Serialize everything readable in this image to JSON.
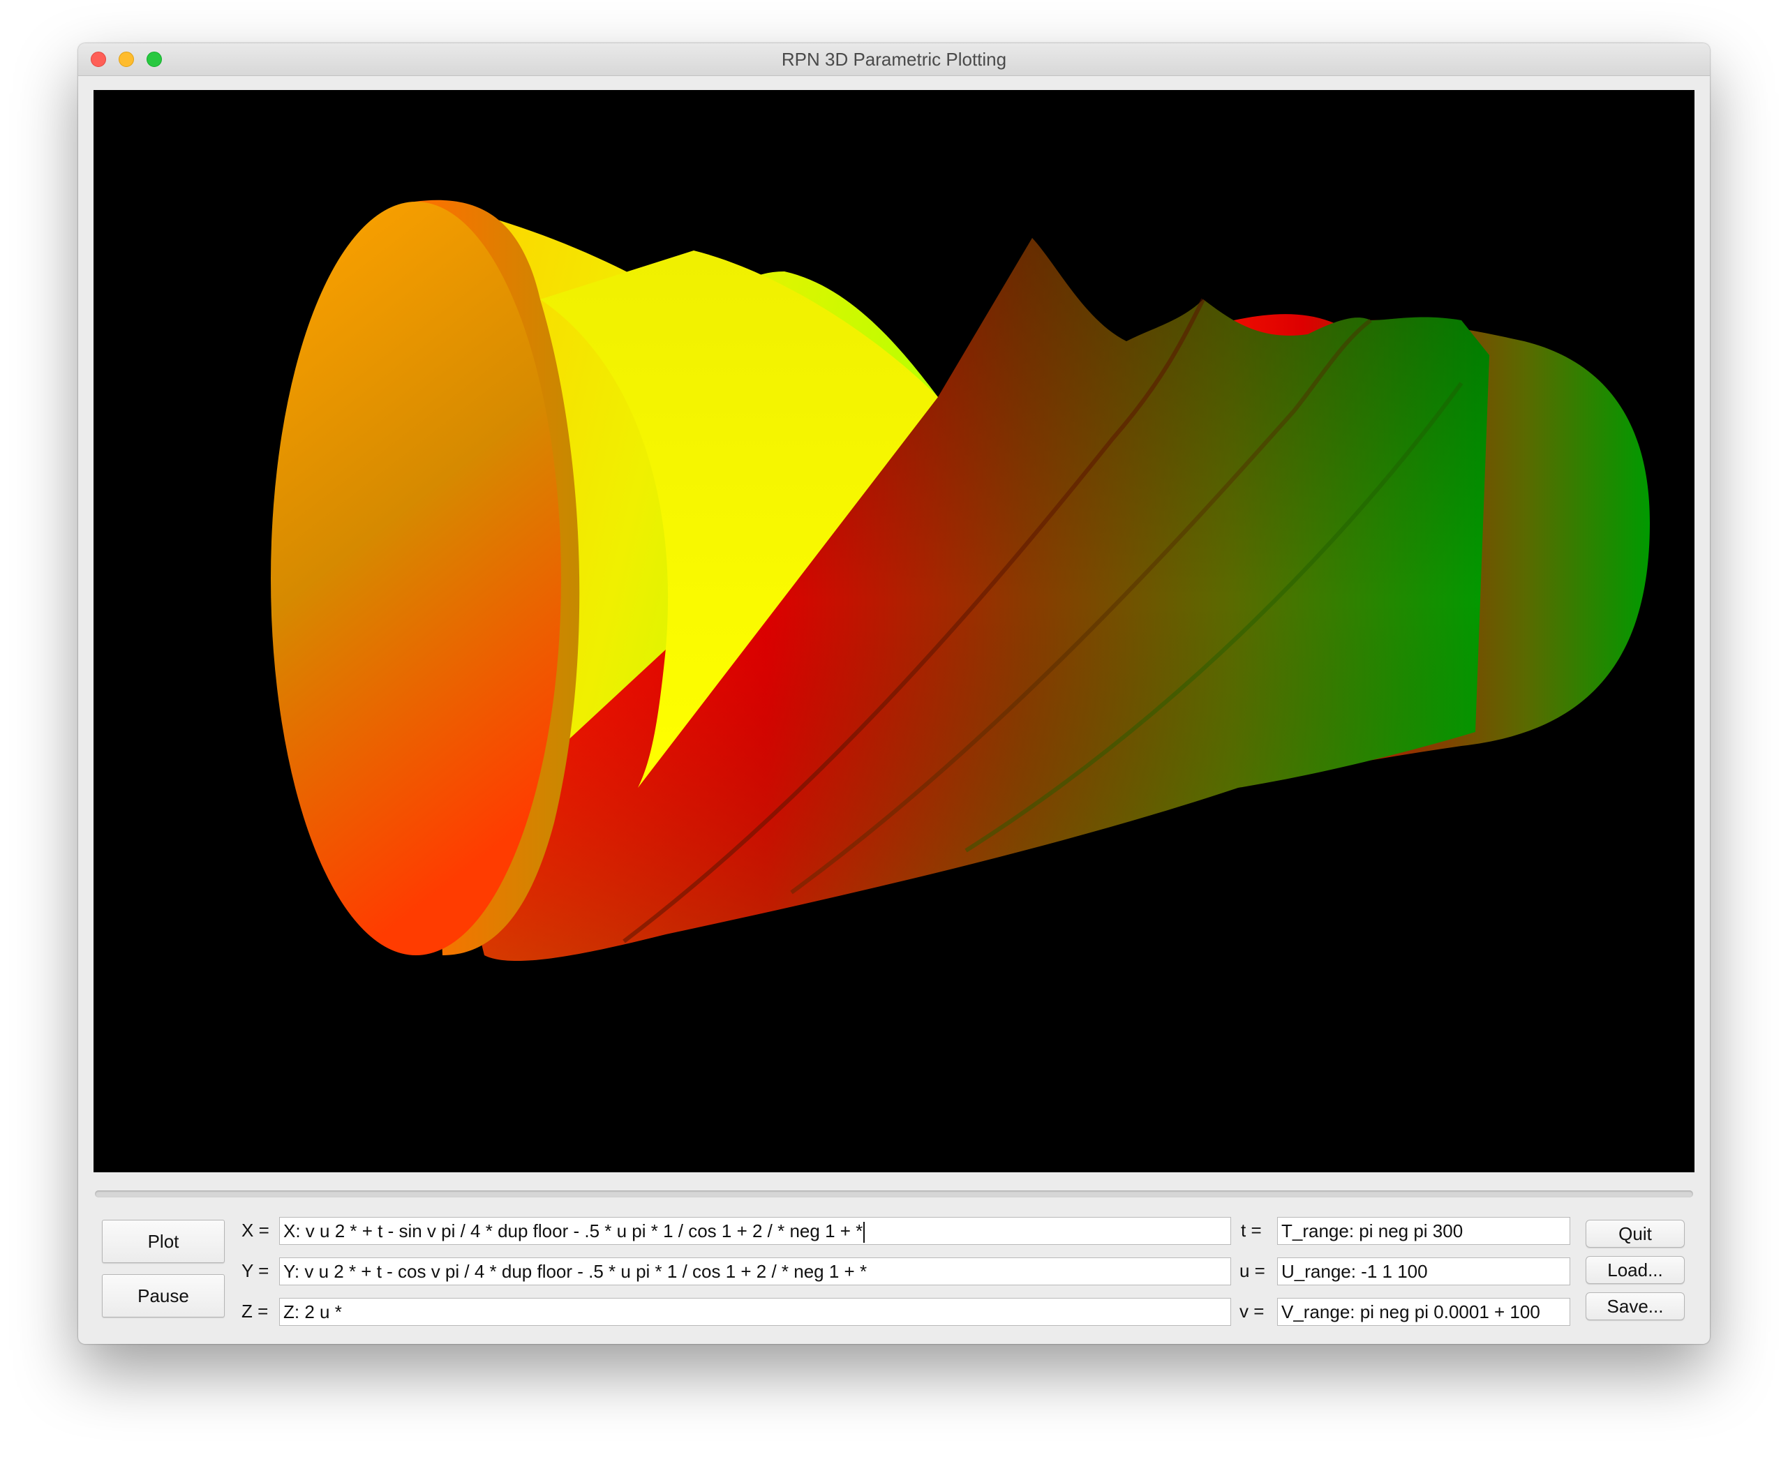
{
  "window": {
    "title": "RPN 3D Parametric Plotting"
  },
  "canvas": {
    "background": "#000000",
    "surface_colors": [
      "#ff7a00",
      "#ffe000",
      "#b8ff00",
      "#ff0000",
      "#8b2a00",
      "#00b000"
    ]
  },
  "controls": {
    "plot_label": "Plot",
    "pause_label": "Pause",
    "quit_label": "Quit",
    "load_label": "Load...",
    "save_label": "Save..."
  },
  "equations": {
    "x_label": "X =",
    "x_value": "X: v u 2 * + t - sin v pi / 4 * dup floor - .5 * u pi * 1 / cos 1 + 2 / * neg 1 + *",
    "y_label": "Y =",
    "y_value": "Y: v u 2 * + t - cos v pi / 4 * dup floor - .5 * u pi * 1 / cos 1 + 2 / * neg 1 + *",
    "z_label": "Z =",
    "z_value": "Z: 2 u *"
  },
  "ranges": {
    "t_label": "t =",
    "t_value": "T_range: pi neg pi 300",
    "u_label": "u =",
    "u_value": "U_range: -1 1 100",
    "v_label": "v =",
    "v_value": "V_range: pi neg pi 0.0001 + 100"
  }
}
